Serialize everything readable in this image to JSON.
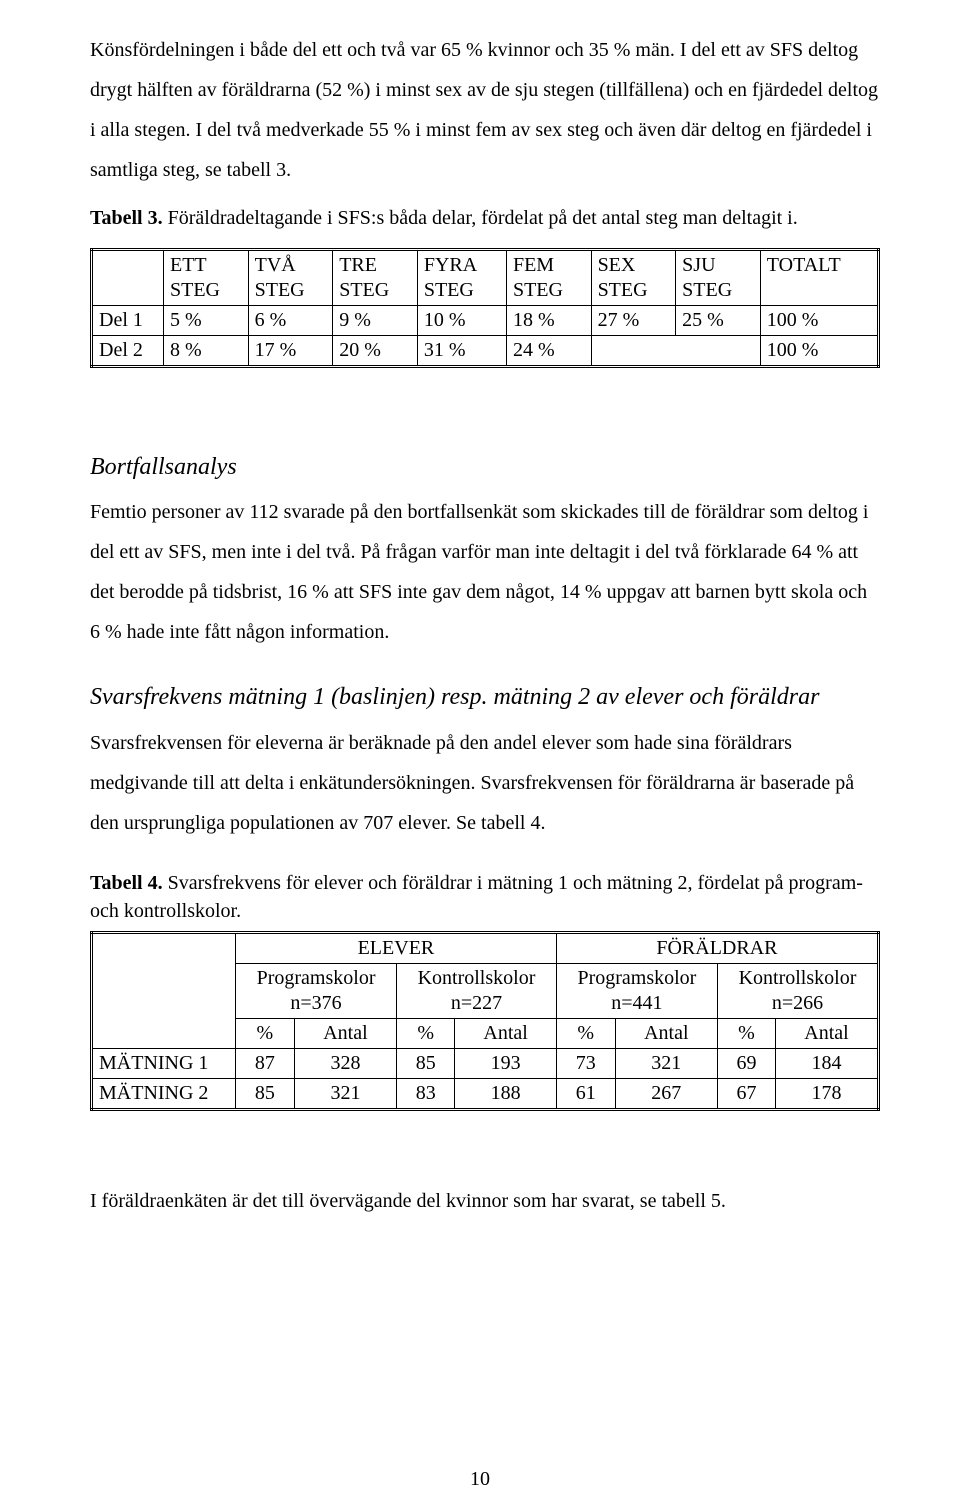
{
  "para1": "Könsfördelningen i både del ett och två var 65 % kvinnor och 35 % män. I del ett av SFS deltog drygt hälften av föräldrarna (52 %) i minst sex av de sju stegen (tillfällena) och en fjärdedel deltog i alla stegen. I del två medverkade 55 % i minst fem av sex steg och även där deltog en fjärdedel i samtliga steg, se tabell 3.",
  "tabell3_caption_bold": "Tabell 3.",
  "tabell3_caption_rest": " Föräldradeltagande i SFS:s båda delar, fördelat på det antal steg man deltagit i.",
  "table3": {
    "headers": [
      "",
      "ETT STEG",
      "TVÅ STEG",
      "TRE STEG",
      "FYRA STEG",
      "FEM STEG",
      "SEX STEG",
      "SJU STEG",
      "TOTALT"
    ],
    "rows": [
      {
        "label": "Del 1",
        "cells": [
          "5 %",
          "6 %",
          "9 %",
          "10 %",
          "18 %",
          "27 %",
          "25 %",
          "100 %"
        ]
      },
      {
        "label": "Del 2",
        "cells": [
          "8 %",
          "17 %",
          "20 %",
          "31 %",
          "24 %",
          "",
          "",
          "100 %"
        ]
      }
    ]
  },
  "bortfall_heading": "Bortfallsanalys",
  "bortfall_para": "Femtio personer av 112 svarade på den bortfallsenkät som skickades till de föräldrar som deltog i del ett av SFS, men inte i del två. På frågan varför man inte deltagit i del två förklarade 64 % att det berodde på tidsbrist, 16 % att SFS inte gav dem något, 14 % uppgav att barnen bytt skola och 6 % hade inte fått någon information.",
  "svars_heading": "Svarsfrekvens mätning 1 (baslinjen) resp. mätning 2 av elever och föräldrar",
  "svars_para": "Svarsfrekvensen för eleverna är beräknade på den andel elever som hade sina föräldrars medgivande till att delta i enkätundersökningen. Svarsfrekvensen för föräldrarna är baserade på den ursprungliga populationen av 707 elever. Se tabell 4.",
  "tabell4_caption_bold": "Tabell 4.",
  "tabell4_caption_rest": " Svarsfrekvens för elever och föräldrar i mätning 1 och mätning 2, fördelat på program- och kontrollskolor.",
  "table4": {
    "top_groups": [
      "ELEVER",
      "FÖRÄLDRAR"
    ],
    "sub_groups": [
      {
        "label": "Programskolor",
        "n": "n=376"
      },
      {
        "label": "Kontrollskolor",
        "n": "n=227"
      },
      {
        "label": "Programskolor",
        "n": "n=441"
      },
      {
        "label": "Kontrollskolor",
        "n": "n=266"
      }
    ],
    "metric_labels": [
      "%",
      "Antal"
    ],
    "rows": [
      {
        "label": "MÄTNING 1",
        "cells": [
          "87",
          "328",
          "85",
          "193",
          "73",
          "321",
          "69",
          "184"
        ]
      },
      {
        "label": "MÄTNING 2",
        "cells": [
          "85",
          "321",
          "83",
          "188",
          "61",
          "267",
          "67",
          "178"
        ]
      }
    ]
  },
  "closing_para": "I föräldraenkäten är det till övervägande del kvinnor som har svarat, se tabell 5.",
  "page_number": "10"
}
